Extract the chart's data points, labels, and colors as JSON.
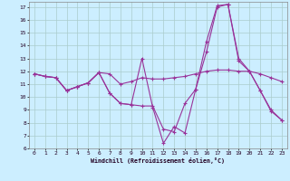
{
  "xlabel": "Windchill (Refroidissement éolien,°C)",
  "bg_color": "#cceeff",
  "grid_color": "#aacccc",
  "line_color": "#993399",
  "xlim": [
    -0.5,
    23.5
  ],
  "ylim": [
    6,
    17.4
  ],
  "xticks": [
    0,
    1,
    2,
    3,
    4,
    5,
    6,
    7,
    8,
    9,
    10,
    11,
    12,
    13,
    14,
    15,
    16,
    17,
    18,
    19,
    20,
    21,
    22,
    23
  ],
  "yticks": [
    6,
    7,
    8,
    9,
    10,
    11,
    12,
    13,
    14,
    15,
    16,
    17
  ],
  "line1_x": [
    0,
    1,
    2,
    3,
    4,
    5,
    6,
    7,
    8,
    9,
    10,
    11,
    12,
    13,
    14,
    15,
    16,
    17,
    18,
    19,
    20,
    21,
    22,
    23
  ],
  "line1_y": [
    11.8,
    11.6,
    11.5,
    10.5,
    10.8,
    11.1,
    11.9,
    11.8,
    11.0,
    11.2,
    11.5,
    11.4,
    11.4,
    11.5,
    11.6,
    11.8,
    12.0,
    12.1,
    12.1,
    12.0,
    12.0,
    11.8,
    11.5,
    11.2
  ],
  "line2_x": [
    0,
    1,
    2,
    3,
    4,
    5,
    6,
    7,
    8,
    9,
    10,
    11,
    12,
    13,
    14,
    15,
    16,
    17,
    18,
    19,
    20,
    21,
    22,
    23
  ],
  "line2_y": [
    11.8,
    11.6,
    11.5,
    10.5,
    10.8,
    11.1,
    11.9,
    10.3,
    9.5,
    9.4,
    9.3,
    9.3,
    7.5,
    7.3,
    9.5,
    10.6,
    13.5,
    17.0,
    17.2,
    12.8,
    12.0,
    10.5,
    9.0,
    8.2
  ],
  "line3_x": [
    0,
    1,
    2,
    3,
    4,
    5,
    6,
    7,
    8,
    9,
    10,
    11,
    12,
    13,
    14,
    15,
    16,
    17,
    18,
    19,
    20,
    21,
    22,
    23
  ],
  "line3_y": [
    11.8,
    11.6,
    11.5,
    10.5,
    10.8,
    11.1,
    11.9,
    10.3,
    9.5,
    9.4,
    13.0,
    9.2,
    6.4,
    7.7,
    7.2,
    10.6,
    14.3,
    17.1,
    17.2,
    13.0,
    12.0,
    10.5,
    8.9,
    8.2
  ]
}
